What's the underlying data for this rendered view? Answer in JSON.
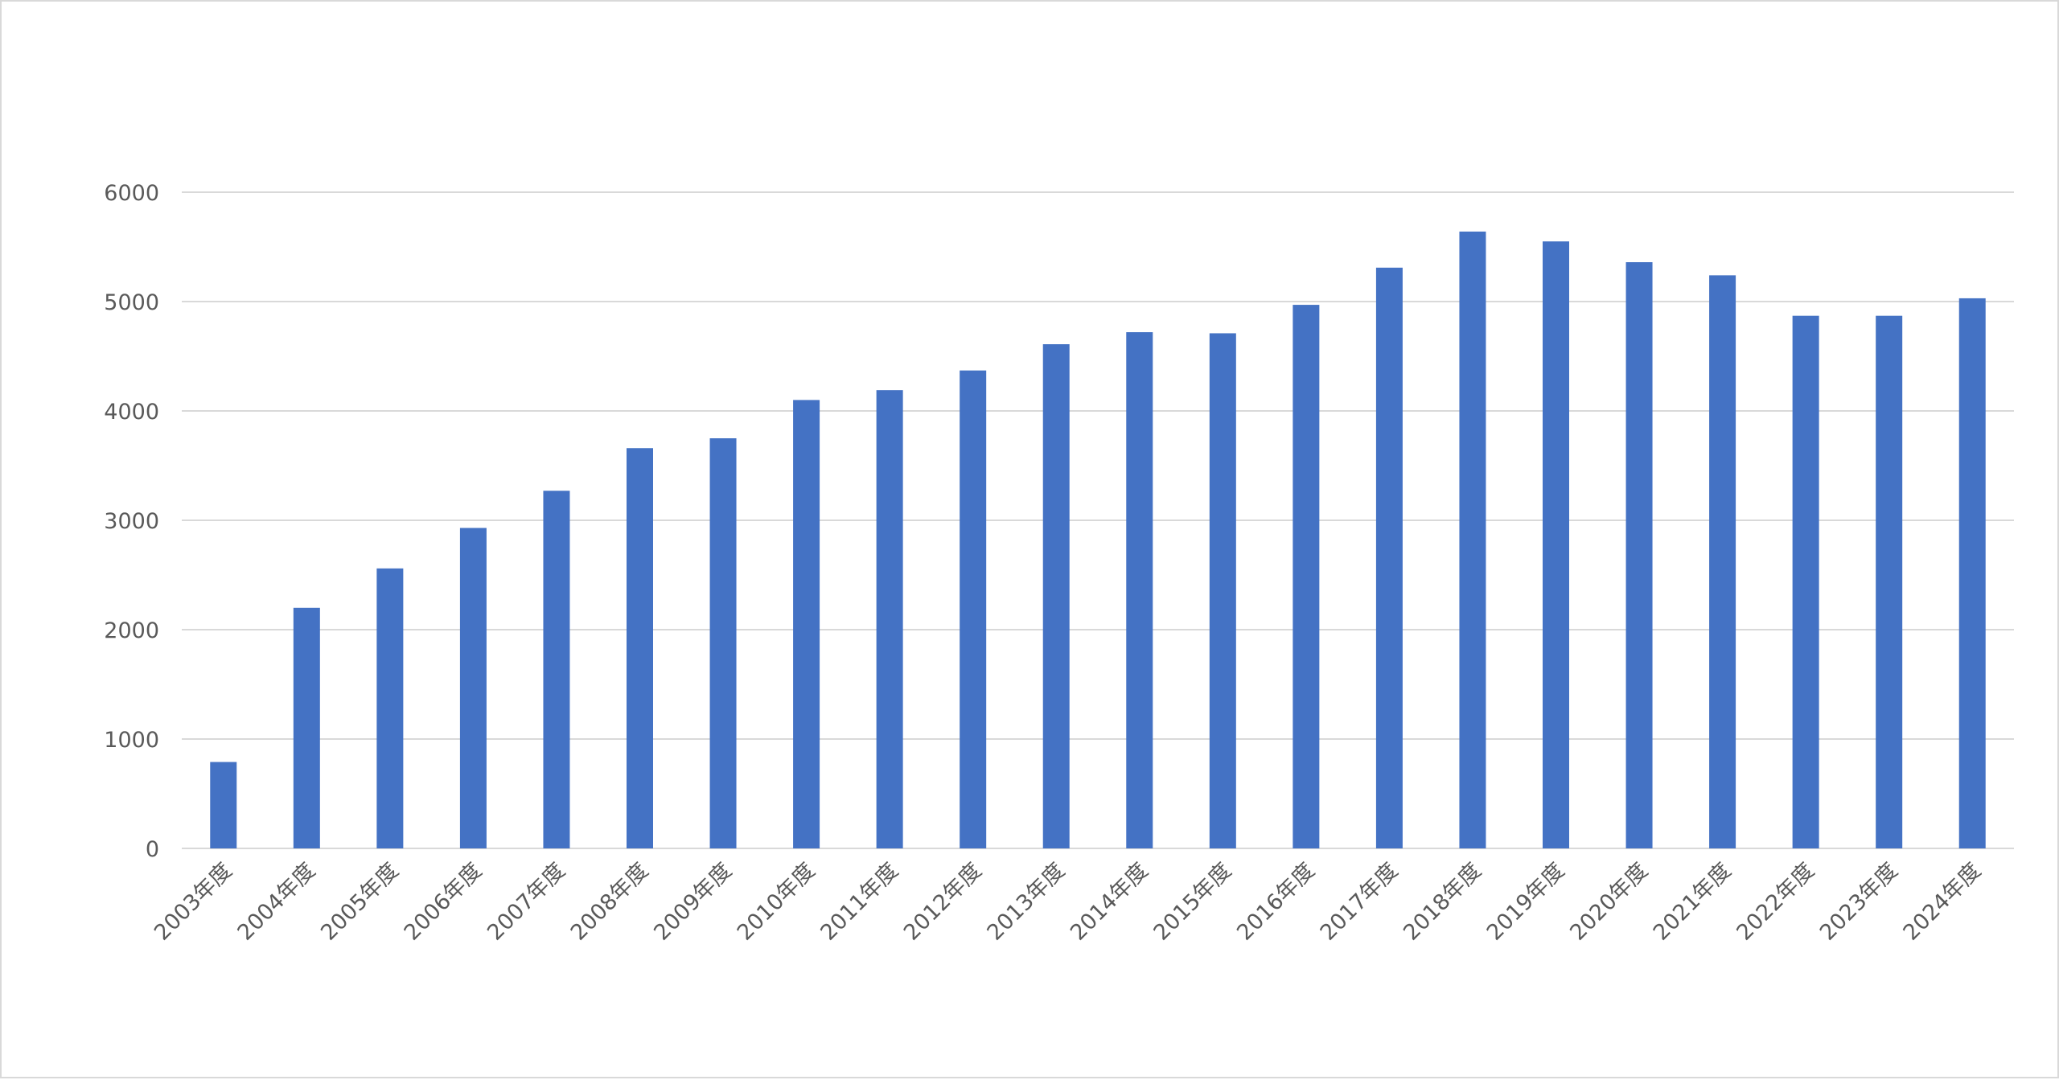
{
  "chart_data": {
    "type": "bar",
    "title": "",
    "xlabel": "",
    "ylabel": "",
    "ylim": [
      0,
      6000
    ],
    "yticks": [
      0,
      1000,
      2000,
      3000,
      4000,
      5000,
      6000
    ],
    "grid": true,
    "legend": "none",
    "bar_color": "#4472C4",
    "gridline_color": "#d9d9d9",
    "categories": [
      "2003年度",
      "2004年度",
      "2005年度",
      "2006年度",
      "2007年度",
      "2008年度",
      "2009年度",
      "2010年度",
      "2011年度",
      "2012年度",
      "2013年度",
      "2014年度",
      "2015年度",
      "2016年度",
      "2017年度",
      "2018年度",
      "2019年度",
      "2020年度",
      "2021年度",
      "2022年度",
      "2023年度",
      "2024年度"
    ],
    "series": [
      {
        "values": [
          790,
          2200,
          2560,
          2930,
          3270,
          3660,
          3750,
          4100,
          4190,
          4370,
          4610,
          4720,
          4710,
          4970,
          5310,
          5640,
          5550,
          5360,
          5240,
          4870,
          4870,
          5030
        ]
      }
    ]
  }
}
